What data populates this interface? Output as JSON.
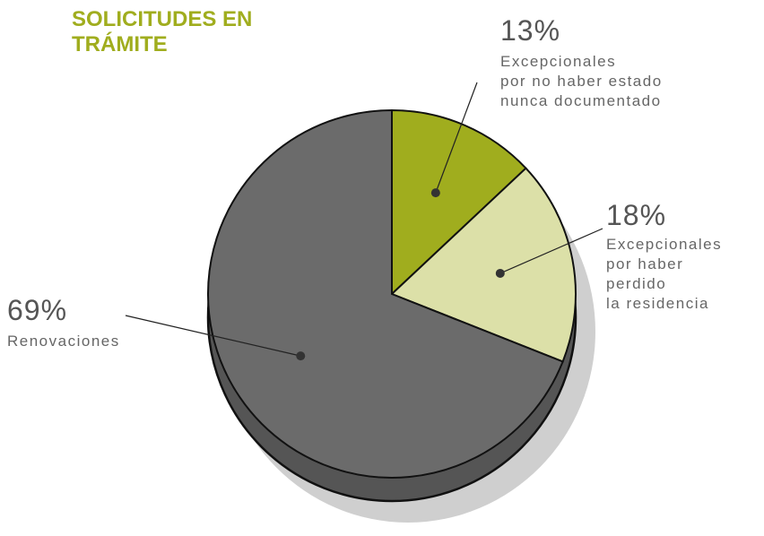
{
  "chart_data": {
    "type": "pie",
    "title": "SOLICITUDES EN\nTRÁMITE",
    "categories": [
      "Excepcionales\npor no haber estado\nnunca documentado",
      "Excepcionales\npor haber\nperdido\nla residencia",
      "Renovaciones"
    ],
    "values": [
      13,
      18,
      69
    ],
    "value_labels": [
      "13%",
      "18%",
      "69%"
    ],
    "colors": [
      "#a0ad1e",
      "#dce0a8",
      "#6b6b6b"
    ]
  }
}
